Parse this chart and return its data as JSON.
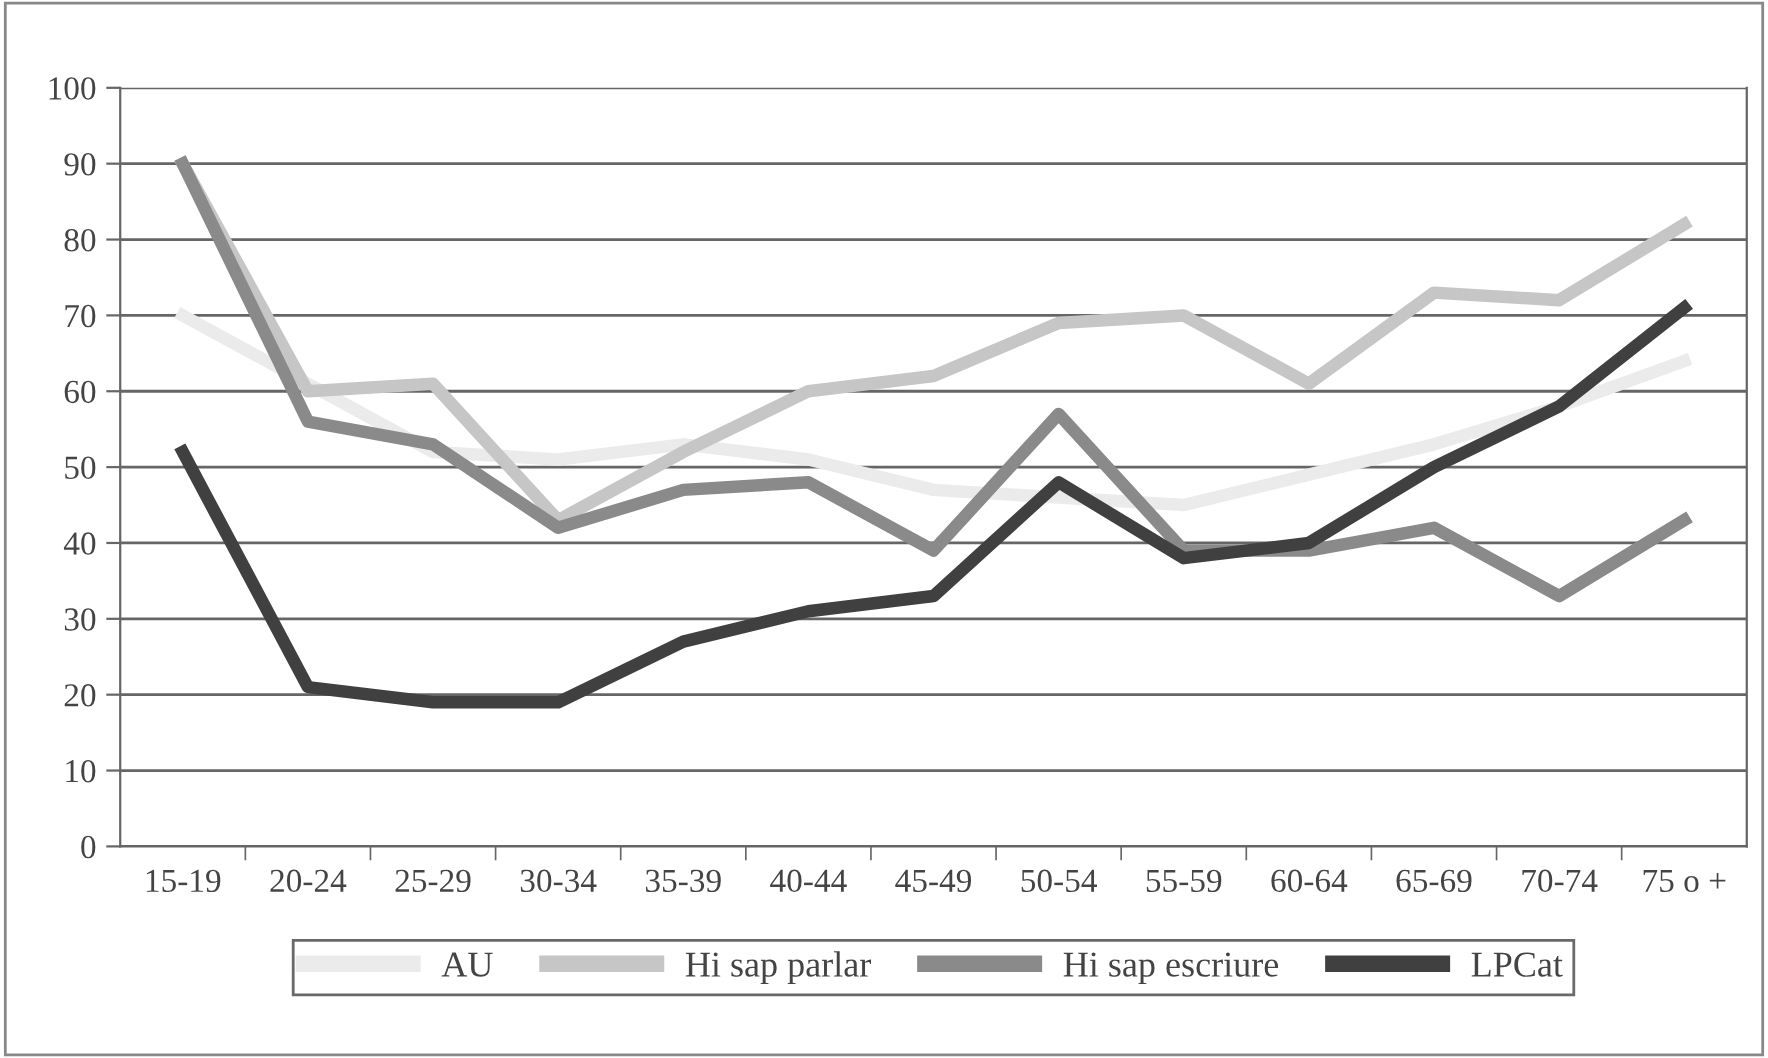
{
  "chart_data": {
    "type": "line",
    "categories": [
      "15-19",
      "20-24",
      "25-29",
      "30-34",
      "35-39",
      "40-44",
      "45-49",
      "50-54",
      "55-59",
      "60-64",
      "65-69",
      "70-74",
      "75 o +"
    ],
    "series": [
      {
        "name": "AU",
        "color": "#ebebeb",
        "values": [
          70,
          61,
          52,
          51,
          53,
          51,
          47,
          46,
          45,
          49,
          53,
          58,
          64
        ]
      },
      {
        "name": "Hi sap parlar",
        "color": "#c6c6c6",
        "values": [
          90,
          60,
          61,
          43,
          52,
          60,
          62,
          69,
          70,
          61,
          73,
          72,
          82
        ]
      },
      {
        "name": "Hi sap escriure",
        "color": "#8a8a8a",
        "values": [
          90,
          56,
          53,
          42,
          47,
          48,
          39,
          57,
          39,
          39,
          42,
          33,
          43
        ]
      },
      {
        "name": "LPCat",
        "color": "#404040",
        "values": [
          52,
          21,
          19,
          19,
          27,
          31,
          33,
          48,
          38,
          40,
          50,
          58,
          71
        ]
      }
    ],
    "ylim": [
      0,
      100
    ],
    "yticks": [
      0,
      10,
      20,
      30,
      40,
      50,
      60,
      70,
      80,
      90,
      100
    ],
    "grid": "y",
    "legend": "bottom",
    "marker": "none",
    "line_style": "solid"
  }
}
